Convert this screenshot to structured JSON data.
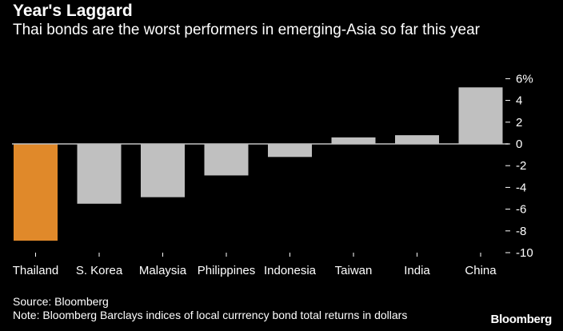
{
  "chart_data": {
    "type": "bar",
    "title": "Year's Laggard",
    "subtitle": "Thai bonds are the worst performers in emerging-Asia so far this year",
    "categories": [
      "Thailand",
      "S. Korea",
      "Malaysia",
      "Philippines",
      "Indonesia",
      "Taiwan",
      "India",
      "China"
    ],
    "values": [
      -8.9,
      -5.5,
      -4.9,
      -2.9,
      -1.2,
      0.6,
      0.8,
      5.2
    ],
    "ylim": [
      -10,
      6
    ],
    "yticks": [
      6,
      4,
      2,
      0,
      -2,
      -4,
      -6,
      -8,
      -10
    ],
    "yunit": "%",
    "axis_position": "right",
    "grid": false,
    "colors": {
      "highlight": "#e0892a",
      "default": "#c0c0c0",
      "background": "#000000"
    },
    "highlight_category": "Thailand"
  },
  "footer": {
    "source": "Source: Bloomberg",
    "note": "Note: Bloomberg Barclays indices of local currrency bond total returns in dollars",
    "logo": "Bloomberg"
  }
}
